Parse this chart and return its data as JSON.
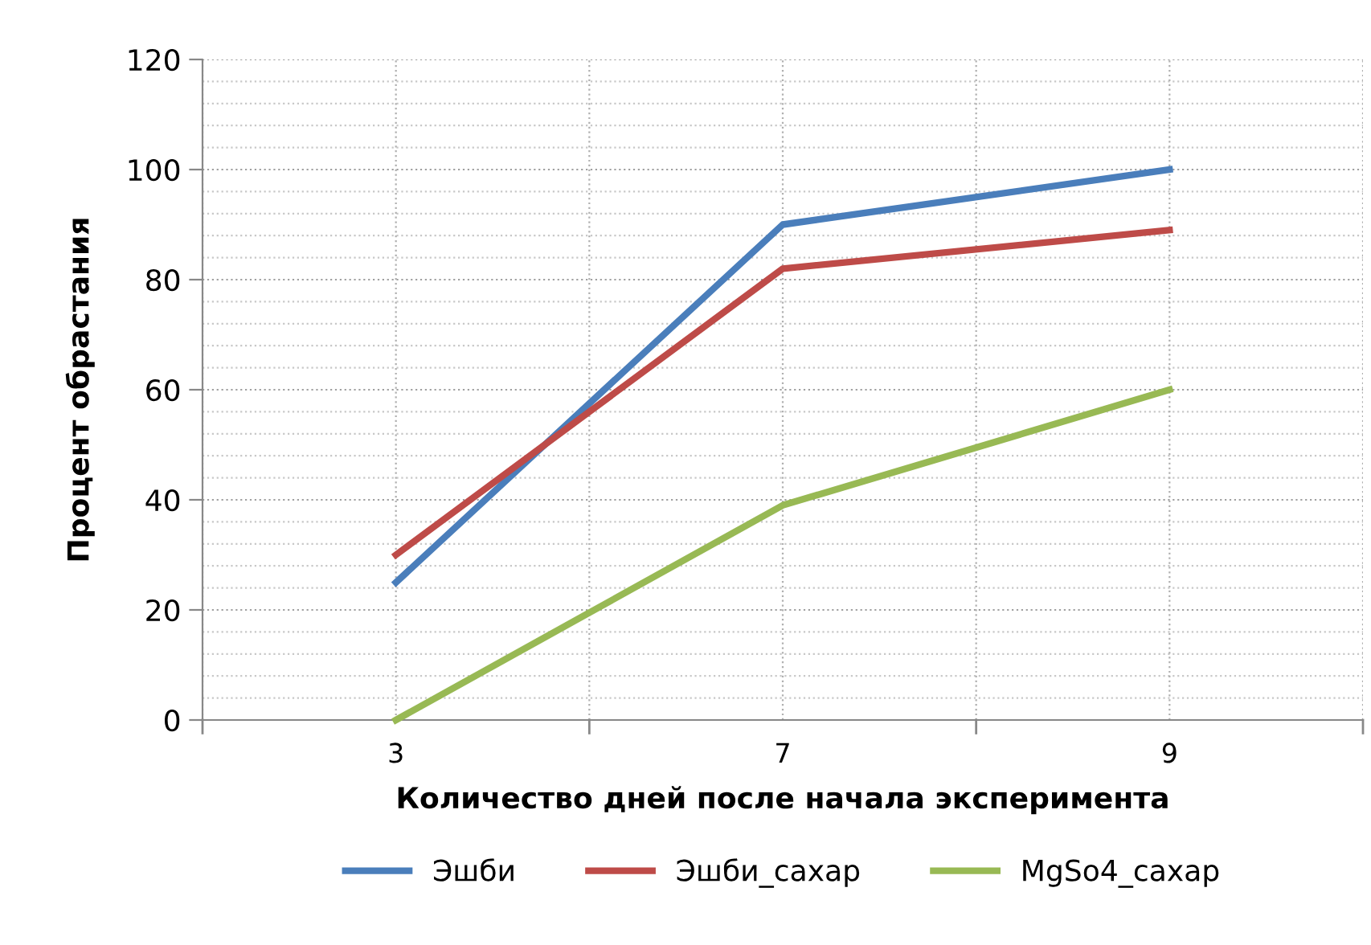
{
  "chart_data": {
    "type": "line",
    "xlabel": "Количество дней после начала эксперимента",
    "ylabel": "Процент обрастания",
    "categories": [
      "3",
      "7",
      "9"
    ],
    "series": [
      {
        "name": "Эшби",
        "color": "#4a7ebb",
        "values": [
          25,
          90,
          100
        ]
      },
      {
        "name": "Эшби_сахар",
        "color": "#be4b48",
        "values": [
          30,
          82,
          89
        ]
      },
      {
        "name": "MgSo4_сахар",
        "color": "#98b954",
        "values": [
          0,
          39,
          60
        ]
      }
    ],
    "ylim": [
      0,
      120
    ],
    "yticks": [
      0,
      20,
      40,
      60,
      80,
      100,
      120
    ],
    "grid": true,
    "legend": "bottom",
    "marker": "none",
    "line_style": "solid"
  }
}
